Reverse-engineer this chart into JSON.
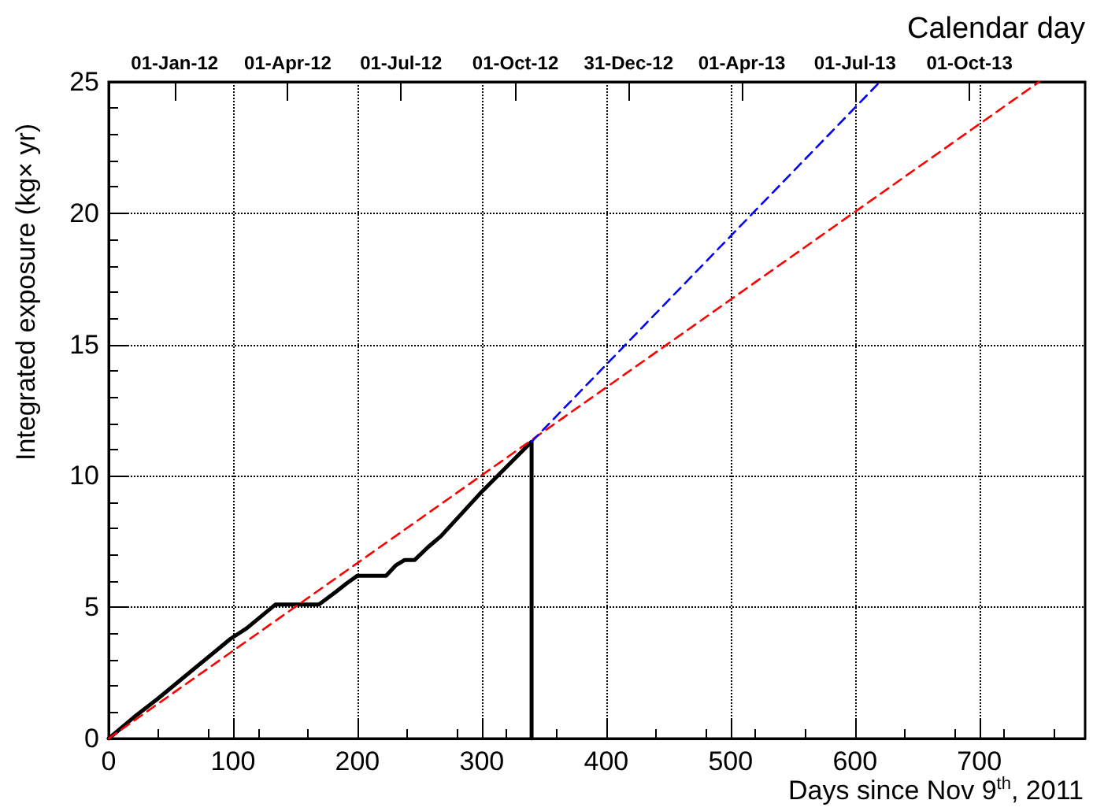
{
  "chart_data": {
    "type": "line",
    "xlabel": "Days since Nov 9$^{th}$, 2011",
    "ylabel": "Integrated exposure (kg× yr)",
    "x2label": "Calendar day",
    "xlim": [
      0,
      785
    ],
    "xticks": [
      0,
      100,
      200,
      300,
      400,
      500,
      600,
      700
    ],
    "ylim": [
      0,
      25
    ],
    "yticks": [
      0,
      5,
      10,
      15,
      20,
      25
    ],
    "x2lim": [
      "2011-11-09",
      "2014-01-02"
    ],
    "x2ticks": [
      {
        "value": "2012-01-01",
        "label": "01-Jan-12"
      },
      {
        "value": "2012-04-01",
        "label": "01-Apr-12"
      },
      {
        "value": "2012-07-01",
        "label": "01-Jul-12"
      },
      {
        "value": "2012-10-01",
        "label": "01-Oct-12"
      },
      {
        "value": "2012-12-31",
        "label": "31-Dec-12"
      },
      {
        "value": "2013-04-01",
        "label": "01-Apr-13"
      },
      {
        "value": "2013-07-01",
        "label": "01-Jul-13"
      },
      {
        "value": "2013-10-01",
        "label": "01-Oct-13"
      }
    ],
    "grid": true,
    "marker": "none",
    "legend": false,
    "series": [
      {
        "color": "#000000",
        "line_style": "solid",
        "x": [
          0,
          20,
          39,
          98,
          111,
          134,
          169,
          183,
          191,
          200,
          223,
          231,
          238,
          246,
          257,
          267,
          300,
          340,
          340
        ],
        "values": [
          0,
          0.8,
          1.5,
          3.8,
          4.2,
          5.1,
          5.1,
          5.6,
          5.9,
          6.2,
          6.2,
          6.6,
          6.8,
          6.8,
          7.3,
          7.7,
          9.4,
          11.3,
          0
        ]
      },
      {
        "color": "#ff0000",
        "line_style": "dashed",
        "x": [
          0,
          748
        ],
        "values": [
          0,
          25
        ]
      },
      {
        "color": "#0000ff",
        "line_style": "dashed",
        "x": [
          340,
          620
        ],
        "values": [
          11.3,
          25
        ]
      }
    ]
  }
}
